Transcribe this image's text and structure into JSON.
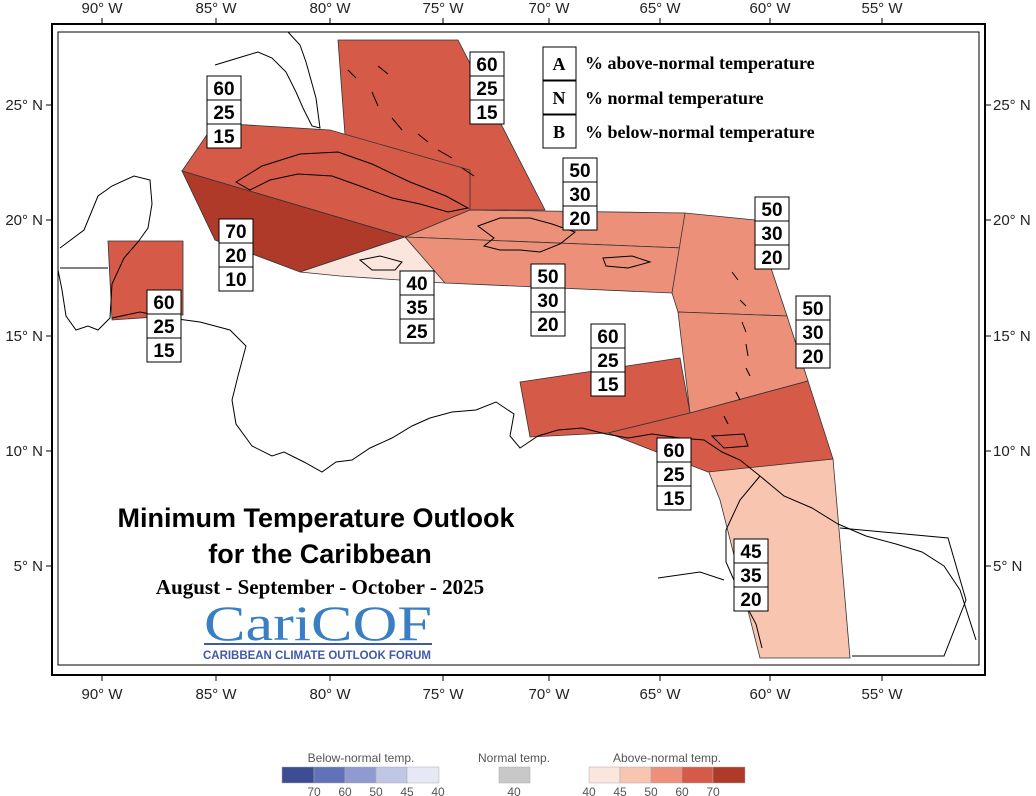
{
  "title": "Minimum Temperature Outlook",
  "subtitle": "for the Caribbean",
  "period": "August - September - October - 2025",
  "logo": {
    "name": "CariCOF",
    "tagline": "CARIBBEAN CLIMATE OUTLOOK FORUM"
  },
  "axes": {
    "lon_ticks": [
      "90° W",
      "85° W",
      "80° W",
      "75° W",
      "70° W",
      "65° W",
      "60° W",
      "55° W"
    ],
    "lat_ticks": [
      "25° N",
      "20° N",
      "15° N",
      "10° N",
      "5° N"
    ]
  },
  "legend": [
    {
      "key": "A",
      "text": "% above-normal temperature"
    },
    {
      "key": "N",
      "text": "% normal temperature"
    },
    {
      "key": "B",
      "text": "% below-normal temperature"
    }
  ],
  "colors": {
    "above_40": "#fbe6dd",
    "above_45": "#f8c5b1",
    "above_50": "#ec9079",
    "above_60": "#d65a48",
    "above_70": "#b03a2a",
    "below_70": "#3d4c93",
    "below_60": "#6272b8",
    "below_50": "#8f9ad0",
    "below_45": "#bfc6e6",
    "below_40": "#e6e9f5",
    "normal_40": "#c8c8c8"
  },
  "regions": [
    {
      "id": "bahamas",
      "level": "above_60",
      "A": "60",
      "N": "25",
      "B": "15"
    },
    {
      "id": "cuba",
      "level": "above_60",
      "A": "60",
      "N": "25",
      "B": "15"
    },
    {
      "id": "cayman",
      "level": "above_70",
      "A": "70",
      "N": "20",
      "B": "10"
    },
    {
      "id": "belize",
      "level": "above_60",
      "A": "60",
      "N": "25",
      "B": "15"
    },
    {
      "id": "jamaica",
      "level": "above_40",
      "A": "40",
      "N": "35",
      "B": "25"
    },
    {
      "id": "hispaniola-north",
      "level": "above_50",
      "A": "50",
      "N": "30",
      "B": "20"
    },
    {
      "id": "hispaniola-south",
      "level": "above_50",
      "A": "50",
      "N": "30",
      "B": "20"
    },
    {
      "id": "leeward",
      "level": "above_50",
      "A": "50",
      "N": "30",
      "B": "20"
    },
    {
      "id": "windward",
      "level": "above_50",
      "A": "50",
      "N": "30",
      "B": "20"
    },
    {
      "id": "abc-islands",
      "level": "above_60",
      "A": "60",
      "N": "25",
      "B": "15"
    },
    {
      "id": "trinidad-tobago",
      "level": "above_60",
      "A": "60",
      "N": "25",
      "B": "15"
    },
    {
      "id": "guianas",
      "level": "above_45",
      "A": "45",
      "N": "35",
      "B": "20"
    }
  ],
  "colorbar": {
    "below": {
      "label": "Below-normal temp.",
      "ticks": [
        "70",
        "60",
        "50",
        "45",
        "40"
      ]
    },
    "normal": {
      "label": "Normal temp.",
      "ticks": [
        "40"
      ]
    },
    "above": {
      "label": "Above-normal temp.",
      "ticks": [
        "40",
        "45",
        "50",
        "60",
        "70"
      ]
    }
  }
}
